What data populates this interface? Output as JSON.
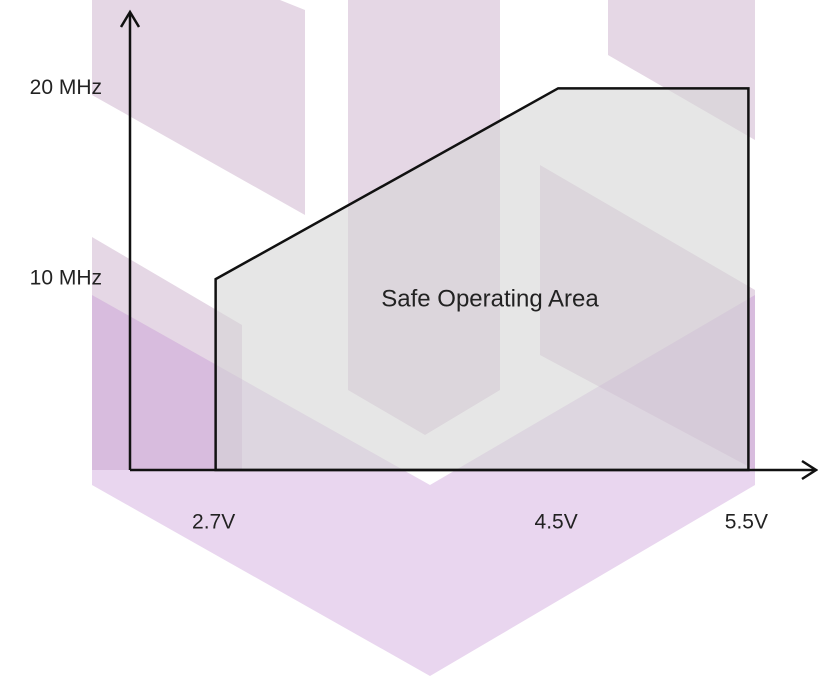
{
  "chart_data": {
    "type": "area",
    "annotation": "Safe Operating Area",
    "x": [
      2.7,
      2.7,
      4.5,
      5.5,
      5.5
    ],
    "y": [
      0,
      10,
      20,
      20,
      0
    ],
    "color": "#d6d6d6",
    "xlim": [
      2.25,
      5.85
    ],
    "ylim": [
      0,
      24
    ],
    "xticks": [
      {
        "value": 2.7,
        "label": "2.7V"
      },
      {
        "value": 4.5,
        "label": "4.5V"
      },
      {
        "value": 5.5,
        "label": "5.5V"
      }
    ],
    "yticks": [
      {
        "value": 10,
        "label": "10 MHz"
      },
      {
        "value": 20,
        "label": "20 MHz"
      }
    ]
  }
}
